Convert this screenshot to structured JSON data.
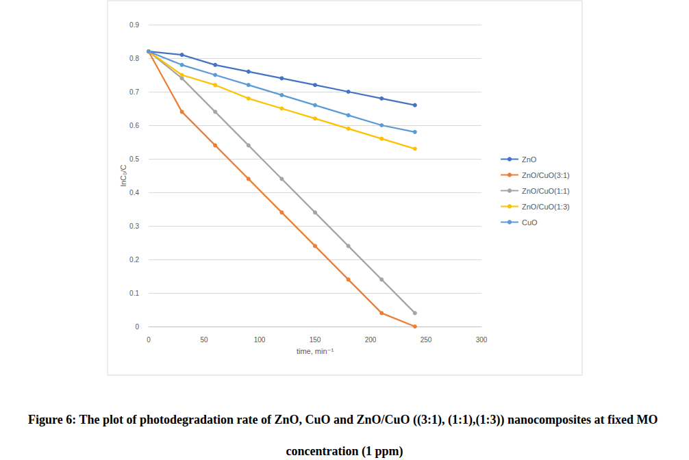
{
  "chart_data": {
    "type": "line",
    "title": "Figure 6: The plot of photodegradation rate of ZnO, CuO and ZnO/CuO ((3:1), (1:1),(1:3)) nanocomposites at fixed MO concentration (1 ppm)",
    "x_label": "time, min⁻¹",
    "y_label": "lnC₀/C",
    "x": [
      0,
      30,
      60,
      90,
      120,
      150,
      180,
      210,
      240
    ],
    "series": [
      {
        "name": "ZnO",
        "color": "#4472c4",
        "values": [
          0.82,
          0.81,
          0.78,
          0.76,
          0.74,
          0.72,
          0.7,
          0.68,
          0.66
        ]
      },
      {
        "name": "ZnO/CuO(3:1)",
        "color": "#ed7d31",
        "values": [
          0.82,
          0.64,
          0.54,
          0.44,
          0.34,
          0.24,
          0.14,
          0.04,
          0.0
        ]
      },
      {
        "name": "ZnO/CuO(1:1)",
        "color": "#a5a5a5",
        "values": [
          0.82,
          0.74,
          0.64,
          0.54,
          0.44,
          0.34,
          0.24,
          0.14,
          0.04
        ]
      },
      {
        "name": "ZnO/CuO(1:3)",
        "color": "#ffc000",
        "values": [
          0.82,
          0.75,
          0.72,
          0.68,
          0.65,
          0.62,
          0.59,
          0.56,
          0.53
        ]
      },
      {
        "name": "CuO",
        "color": "#5b9bd5",
        "values": [
          0.82,
          0.78,
          0.75,
          0.72,
          0.69,
          0.66,
          0.63,
          0.6,
          0.58
        ]
      }
    ],
    "xlim": [
      0,
      300
    ],
    "xticks": [
      0,
      50,
      100,
      150,
      200,
      250,
      300
    ],
    "ylim": [
      0,
      0.9
    ],
    "yticks": [
      0,
      0.1,
      0.2,
      0.3,
      0.4,
      0.5,
      0.6,
      0.7,
      0.8,
      0.9
    ],
    "grid": true,
    "legend": "right",
    "marker": "circle"
  }
}
